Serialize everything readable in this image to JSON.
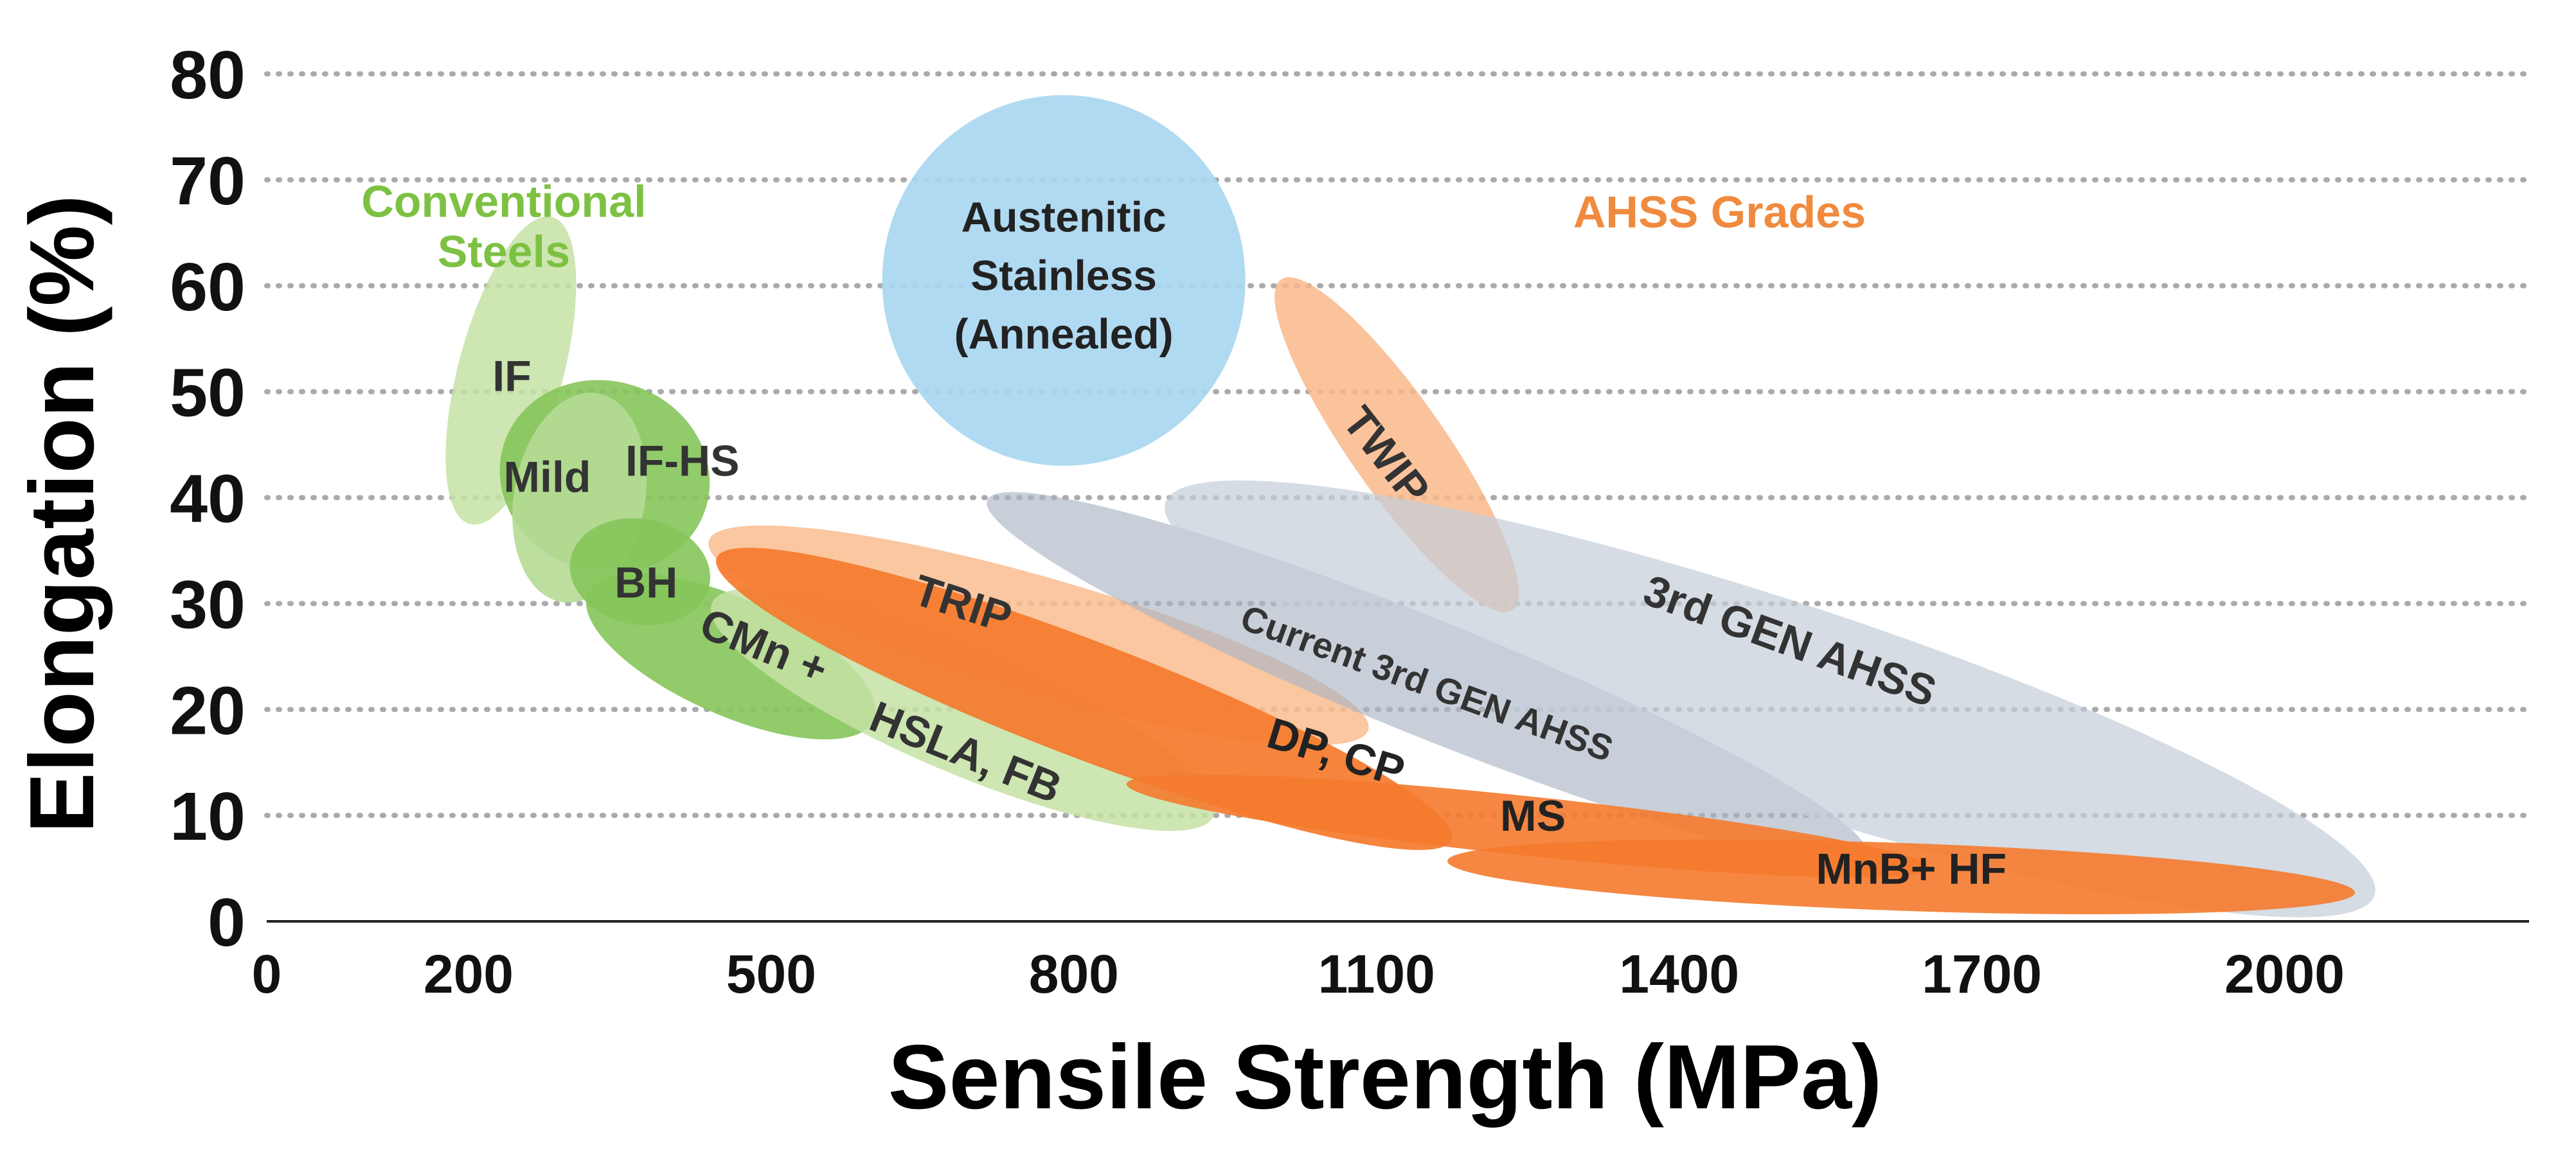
{
  "chart_data": {
    "type": "scatter",
    "title": "",
    "xlabel": "Sensile Strength (MPa)",
    "ylabel": "Elongation (%)",
    "xlim": [
      0,
      2150
    ],
    "ylim": [
      0,
      80
    ],
    "x_ticks": [
      0,
      200,
      500,
      800,
      1100,
      1400,
      1700,
      2000
    ],
    "y_ticks": [
      0,
      10,
      20,
      30,
      40,
      50,
      60,
      70,
      80
    ],
    "grid": "horizontal dotted",
    "group_labels": [
      {
        "text": "Conventional Steels",
        "lines": [
          "Conventional",
          "Steels"
        ],
        "x": 235,
        "y": 66.5,
        "color": "#7dc142"
      },
      {
        "text": "AHSS Grades",
        "lines": [
          "AHSS Grades"
        ],
        "x": 1440,
        "y": 65.5,
        "color": "#f08a3e"
      }
    ],
    "regions": [
      {
        "name": "IF",
        "cx": 242,
        "cy": 52,
        "rx_mpa": 52,
        "ry_pct": 15,
        "angle": 15,
        "color": "#c5e2a4",
        "opacity": 0.85,
        "label_x": 243,
        "label_y": 51.5,
        "label_angle": 0,
        "label_color": "#333333"
      },
      {
        "name": "IF-HS",
        "cx": 335,
        "cy": 42,
        "rx_mpa": 105,
        "ry_pct": 9,
        "angle": 18,
        "color": "#86c55a",
        "opacity": 0.9,
        "label_x": 412,
        "label_y": 43.5,
        "label_angle": 0,
        "label_color": "#333333"
      },
      {
        "name": "Mild",
        "cx": 310,
        "cy": 40,
        "rx_mpa": 65,
        "ry_pct": 10,
        "angle": 10,
        "color": "#b5da95",
        "opacity": 0.9,
        "label_x": 278,
        "label_y": 42,
        "label_angle": 0,
        "label_color": "#333333"
      },
      {
        "name": "BH",
        "cx": 370,
        "cy": 33,
        "rx_mpa": 70,
        "ry_pct": 5,
        "angle": 10,
        "color": "#86c55a",
        "opacity": 0.9,
        "label_x": 376,
        "label_y": 32,
        "label_angle": 0,
        "label_color": "#333333"
      },
      {
        "name": "CMn +",
        "cx": 460,
        "cy": 25,
        "rx_mpa": 155,
        "ry_pct": 5.5,
        "angle": 24,
        "color": "#86c55a",
        "opacity": 0.9,
        "label_x": 493,
        "label_y": 26,
        "label_angle": 22,
        "label_color": "#333333"
      },
      {
        "name": "HSLA, FB",
        "cx": 690,
        "cy": 20,
        "rx_mpa": 270,
        "ry_pct": 6,
        "angle": 23,
        "color": "#c5e2a4",
        "opacity": 0.85,
        "label_x": 693,
        "label_y": 16,
        "label_angle": 22,
        "label_color": "#333333"
      },
      {
        "name": "TRIP",
        "cx": 765,
        "cy": 27,
        "rx_mpa": 340,
        "ry_pct": 5.5,
        "angle": 16,
        "color": "#f9bd91",
        "opacity": 0.85,
        "label_x": 690,
        "label_y": 30,
        "label_angle": 18,
        "label_color": "#333333"
      },
      {
        "name": "DP, CP",
        "cx": 810,
        "cy": 21,
        "rx_mpa": 390,
        "ry_pct": 5.5,
        "angle": 21,
        "color": "#f57a2d",
        "opacity": 0.92,
        "label_x": 1060,
        "label_y": 16,
        "label_angle": 17,
        "label_color": "#222222"
      },
      {
        "name": "TWIP",
        "cx": 1120,
        "cy": 45,
        "rx_mpa": 200,
        "ry_pct": 4.5,
        "angle": 55,
        "color": "#f9b98a",
        "opacity": 0.85,
        "label_x": 1110,
        "label_y": 44,
        "label_angle": 52,
        "label_color": "#333333"
      },
      {
        "name": "Current 3rd GEN AHSS",
        "cx": 1150,
        "cy": 23,
        "rx_mpa": 470,
        "ry_pct": 5.5,
        "angle": 22,
        "color": "#aab6c4",
        "opacity": 0.65,
        "label_x": 1150,
        "label_y": 22.5,
        "label_angle": 20,
        "label_color": "#333333",
        "label_weight": "normal"
      },
      {
        "name": "3rd GEN AHSS",
        "cx": 1490,
        "cy": 21,
        "rx_mpa": 630,
        "ry_pct": 9.5,
        "angle": 18,
        "color": "#c5ced9",
        "opacity": 0.72,
        "label_x": 1510,
        "label_y": 26.5,
        "label_angle": 20,
        "label_color": "#333333"
      },
      {
        "name": "MS",
        "cx": 1250,
        "cy": 9,
        "rx_mpa": 400,
        "ry_pct": 2.8,
        "angle": 6,
        "color": "#f57a2d",
        "opacity": 0.9,
        "label_x": 1255,
        "label_y": 10,
        "label_angle": 0,
        "label_color": "#222222"
      },
      {
        "name": "MnB+ HF",
        "cx": 1620,
        "cy": 4.2,
        "rx_mpa": 450,
        "ry_pct": 3.2,
        "angle": 2,
        "color": "#f57a2d",
        "opacity": 0.9,
        "label_x": 1630,
        "label_y": 5,
        "label_angle": 0,
        "label_color": "#222222"
      },
      {
        "name": "Austenitic Stainless (Annealed)",
        "lines": [
          "Austenitic",
          "Stainless",
          "(Annealed)"
        ],
        "cx": 790,
        "cy": 60.5,
        "rx_mpa": 180,
        "ry_pct": 17.5,
        "angle": 0,
        "color": "#a9d7f1",
        "opacity": 0.92,
        "label_x": 790,
        "label_y": 61,
        "label_angle": 0,
        "label_color": "#222222"
      }
    ]
  }
}
